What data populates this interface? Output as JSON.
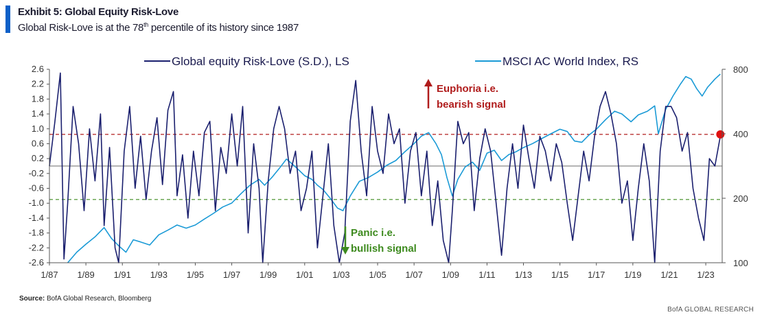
{
  "header": {
    "title": "Exhibit 5: Global Equity Risk-Love",
    "subtitle_pre": "Global Risk-Love is at the 78",
    "subtitle_sup": "th",
    "subtitle_post": " percentile of its history since 1987"
  },
  "footer": {
    "source_label": "Source:",
    "source_text": " BofA Global Research, Bloomberg",
    "brand": "BofA GLOBAL RESEARCH"
  },
  "colors": {
    "risk_love": "#1a1f6e",
    "msci": "#1a9ad6",
    "euphoria": "#b01c1c",
    "panic": "#3d8a1e",
    "latest_marker": "#e01010",
    "accent": "#0d60c8"
  },
  "chart_data": {
    "type": "line",
    "legend": {
      "placement": "top-center",
      "entries": [
        "Global equity Risk-Love (S.D.), LS",
        "MSCI AC World Index, RS"
      ]
    },
    "x_axis": {
      "tick_labels": [
        "1/87",
        "1/89",
        "1/91",
        "1/93",
        "1/95",
        "1/97",
        "1/99",
        "1/01",
        "1/03",
        "1/05",
        "1/07",
        "1/09",
        "1/11",
        "1/13",
        "1/15",
        "1/17",
        "1/19",
        "1/21",
        "1/23"
      ],
      "range": [
        1987.0,
        2023.9
      ]
    },
    "y_left": {
      "ylim": [
        -2.6,
        2.6
      ],
      "tick_labels": [
        "2.6",
        "2.2",
        "1.8",
        "1.4",
        "1.0",
        "0.6",
        "0.2",
        "-0.2",
        "-0.6",
        "-1.0",
        "-1.4",
        "-1.8",
        "-2.2",
        "-2.6"
      ]
    },
    "y_right": {
      "scale": "log",
      "ylim": [
        100,
        800
      ],
      "tick_labels": [
        "800",
        "400",
        "200",
        "100"
      ]
    },
    "reference_lines": [
      {
        "value": 0.85,
        "style": "dashed",
        "color": "#b01c1c"
      },
      {
        "value": 0.0,
        "style": "solid",
        "color": "#888888"
      },
      {
        "value": -0.9,
        "style": "dashed",
        "color": "#3d8a1e"
      }
    ],
    "annotations": {
      "euphoria_line1": "Euphoria  i.e.",
      "euphoria_line2": "bearish signal",
      "panic_line1": "Panic i.e.",
      "panic_line2": "bullish signal"
    },
    "series": [
      {
        "name": "Global equity Risk-Love (S.D.), LS",
        "axis": "left",
        "x": [
          1987.0,
          1987.3,
          1987.6,
          1987.8,
          1988.0,
          1988.3,
          1988.6,
          1988.9,
          1989.2,
          1989.5,
          1989.8,
          1990.0,
          1990.3,
          1990.6,
          1990.8,
          1991.1,
          1991.4,
          1991.7,
          1992.0,
          1992.3,
          1992.6,
          1992.9,
          1993.2,
          1993.5,
          1993.8,
          1994.0,
          1994.3,
          1994.6,
          1994.9,
          1995.2,
          1995.5,
          1995.8,
          1996.1,
          1996.4,
          1996.7,
          1997.0,
          1997.3,
          1997.6,
          1997.9,
          1998.2,
          1998.5,
          1998.7,
          1999.0,
          1999.3,
          1999.6,
          1999.9,
          2000.2,
          2000.5,
          2000.8,
          2001.1,
          2001.4,
          2001.7,
          2002.0,
          2002.3,
          2002.6,
          2002.9,
          2003.2,
          2003.5,
          2003.8,
          2004.1,
          2004.4,
          2004.7,
          2005.0,
          2005.3,
          2005.6,
          2005.9,
          2006.2,
          2006.5,
          2006.8,
          2007.1,
          2007.4,
          2007.7,
          2008.0,
          2008.3,
          2008.6,
          2008.9,
          2009.1,
          2009.4,
          2009.7,
          2010.0,
          2010.3,
          2010.6,
          2010.9,
          2011.2,
          2011.5,
          2011.8,
          2012.1,
          2012.4,
          2012.7,
          2013.0,
          2013.3,
          2013.6,
          2013.9,
          2014.2,
          2014.5,
          2014.8,
          2015.1,
          2015.4,
          2015.7,
          2016.0,
          2016.3,
          2016.6,
          2016.9,
          2017.2,
          2017.5,
          2017.8,
          2018.1,
          2018.4,
          2018.7,
          2019.0,
          2019.3,
          2019.6,
          2019.9,
          2020.2,
          2020.5,
          2020.8,
          2021.1,
          2021.4,
          2021.7,
          2022.0,
          2022.3,
          2022.6,
          2022.9,
          2023.2,
          2023.5,
          2023.8
        ],
        "values": [
          0.0,
          1.2,
          2.5,
          -2.5,
          -1.0,
          1.6,
          0.6,
          -1.2,
          1.0,
          -0.4,
          1.4,
          -1.6,
          0.5,
          -2.2,
          -2.6,
          0.4,
          1.6,
          -0.6,
          0.8,
          -0.9,
          0.4,
          1.3,
          -0.5,
          1.5,
          2.0,
          -0.8,
          0.3,
          -1.4,
          0.4,
          -0.8,
          0.9,
          1.2,
          -1.2,
          0.5,
          -0.2,
          1.4,
          0.0,
          1.6,
          -1.8,
          0.6,
          -0.6,
          -2.6,
          -0.4,
          1.0,
          1.6,
          1.0,
          -0.2,
          0.4,
          -1.2,
          -0.6,
          0.4,
          -2.2,
          -0.8,
          0.6,
          -1.6,
          -2.6,
          -1.8,
          1.2,
          2.3,
          0.4,
          -0.8,
          1.6,
          0.4,
          -0.2,
          1.4,
          0.6,
          1.0,
          -1.0,
          0.4,
          0.9,
          -0.8,
          0.4,
          -1.6,
          -0.4,
          -2.0,
          -2.6,
          -1.2,
          1.2,
          0.6,
          0.9,
          -1.2,
          0.2,
          1.0,
          0.4,
          -1.0,
          -2.4,
          -0.6,
          0.6,
          -0.6,
          1.1,
          0.2,
          -0.6,
          0.8,
          0.4,
          -0.4,
          0.6,
          0.1,
          -1.0,
          -2.0,
          -0.8,
          0.4,
          -0.4,
          0.8,
          1.6,
          2.0,
          1.4,
          0.6,
          -1.0,
          -0.4,
          -2.0,
          -0.6,
          0.6,
          -0.4,
          -2.6,
          0.4,
          1.6,
          1.6,
          1.3,
          0.4,
          0.9,
          -0.6,
          -1.4,
          -2.0,
          0.2,
          0.0,
          0.8
        ]
      },
      {
        "name": "MSCI AC World Index, RS",
        "axis": "right",
        "x": [
          1988.0,
          1988.5,
          1989.0,
          1989.5,
          1990.0,
          1990.4,
          1990.8,
          1991.2,
          1991.6,
          1992.0,
          1992.5,
          1993.0,
          1993.5,
          1994.0,
          1994.5,
          1995.0,
          1995.5,
          1996.0,
          1996.5,
          1997.0,
          1997.5,
          1998.0,
          1998.5,
          1998.8,
          1999.2,
          1999.6,
          2000.0,
          2000.3,
          2000.7,
          2001.0,
          2001.4,
          2001.7,
          2002.0,
          2002.4,
          2002.8,
          2003.1,
          2003.5,
          2004.0,
          2004.5,
          2005.0,
          2005.5,
          2006.0,
          2006.5,
          2007.0,
          2007.4,
          2007.8,
          2008.2,
          2008.5,
          2008.8,
          2009.1,
          2009.4,
          2009.8,
          2010.2,
          2010.6,
          2011.0,
          2011.4,
          2011.8,
          2012.2,
          2012.6,
          2013.0,
          2013.5,
          2014.0,
          2014.5,
          2015.0,
          2015.4,
          2015.8,
          2016.2,
          2016.6,
          2017.0,
          2017.5,
          2018.0,
          2018.4,
          2018.9,
          2019.3,
          2019.8,
          2020.2,
          2020.4,
          2020.8,
          2021.2,
          2021.6,
          2021.9,
          2022.2,
          2022.5,
          2022.8,
          2023.1,
          2023.5,
          2023.8
        ],
        "values": [
          100,
          112,
          122,
          132,
          146,
          130,
          120,
          112,
          128,
          125,
          121,
          135,
          142,
          150,
          145,
          150,
          160,
          170,
          182,
          190,
          210,
          230,
          245,
          230,
          250,
          275,
          305,
          290,
          270,
          255,
          245,
          230,
          220,
          200,
          180,
          175,
          205,
          240,
          250,
          265,
          285,
          300,
          330,
          360,
          390,
          405,
          360,
          320,
          250,
          205,
          245,
          280,
          295,
          270,
          325,
          335,
          300,
          320,
          330,
          345,
          360,
          380,
          400,
          420,
          410,
          370,
          365,
          395,
          420,
          465,
          510,
          495,
          455,
          490,
          510,
          540,
          400,
          520,
          600,
          680,
          740,
          720,
          650,
          600,
          660,
          720,
          760
        ]
      }
    ],
    "latest_marker": {
      "x": 2023.8,
      "value": 0.85
    }
  }
}
